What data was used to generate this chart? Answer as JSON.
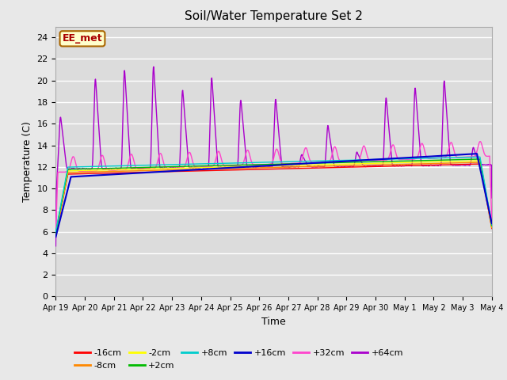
{
  "title": "Soil/Water Temperature Set 2",
  "xlabel": "Time",
  "ylabel": "Temperature (C)",
  "ylim": [
    0,
    25
  ],
  "yticks": [
    0,
    2,
    4,
    6,
    8,
    10,
    12,
    14,
    16,
    18,
    20,
    22,
    24
  ],
  "fig_bg": "#e8e8e8",
  "plot_bg": "#dcdcdc",
  "series_colors": {
    "-16cm": "#ff0000",
    "-8cm": "#ff8800",
    "-2cm": "#ffff00",
    "+2cm": "#00bb00",
    "+8cm": "#00cccc",
    "+16cm": "#0000cc",
    "+32cm": "#ff44cc",
    "+64cm": "#aa00cc"
  },
  "xtick_labels": [
    "Apr 19",
    "Apr 20",
    "Apr 21",
    "Apr 22",
    "Apr 23",
    "Apr 24",
    "Apr 25",
    "Apr 26",
    "Apr 27",
    "Apr 28",
    "Apr 29",
    "Apr 30",
    "May 1",
    "May 2",
    "May 3",
    "May 4"
  ],
  "annotation_text": "EE_met",
  "annotation_color": "#aa0000",
  "annotation_bg": "#ffffcc",
  "annotation_border": "#aa6600",
  "legend_labels": [
    "-16cm",
    "-8cm",
    "-2cm",
    "+2cm",
    "+8cm",
    "+16cm",
    "+32cm",
    "+64cm"
  ]
}
